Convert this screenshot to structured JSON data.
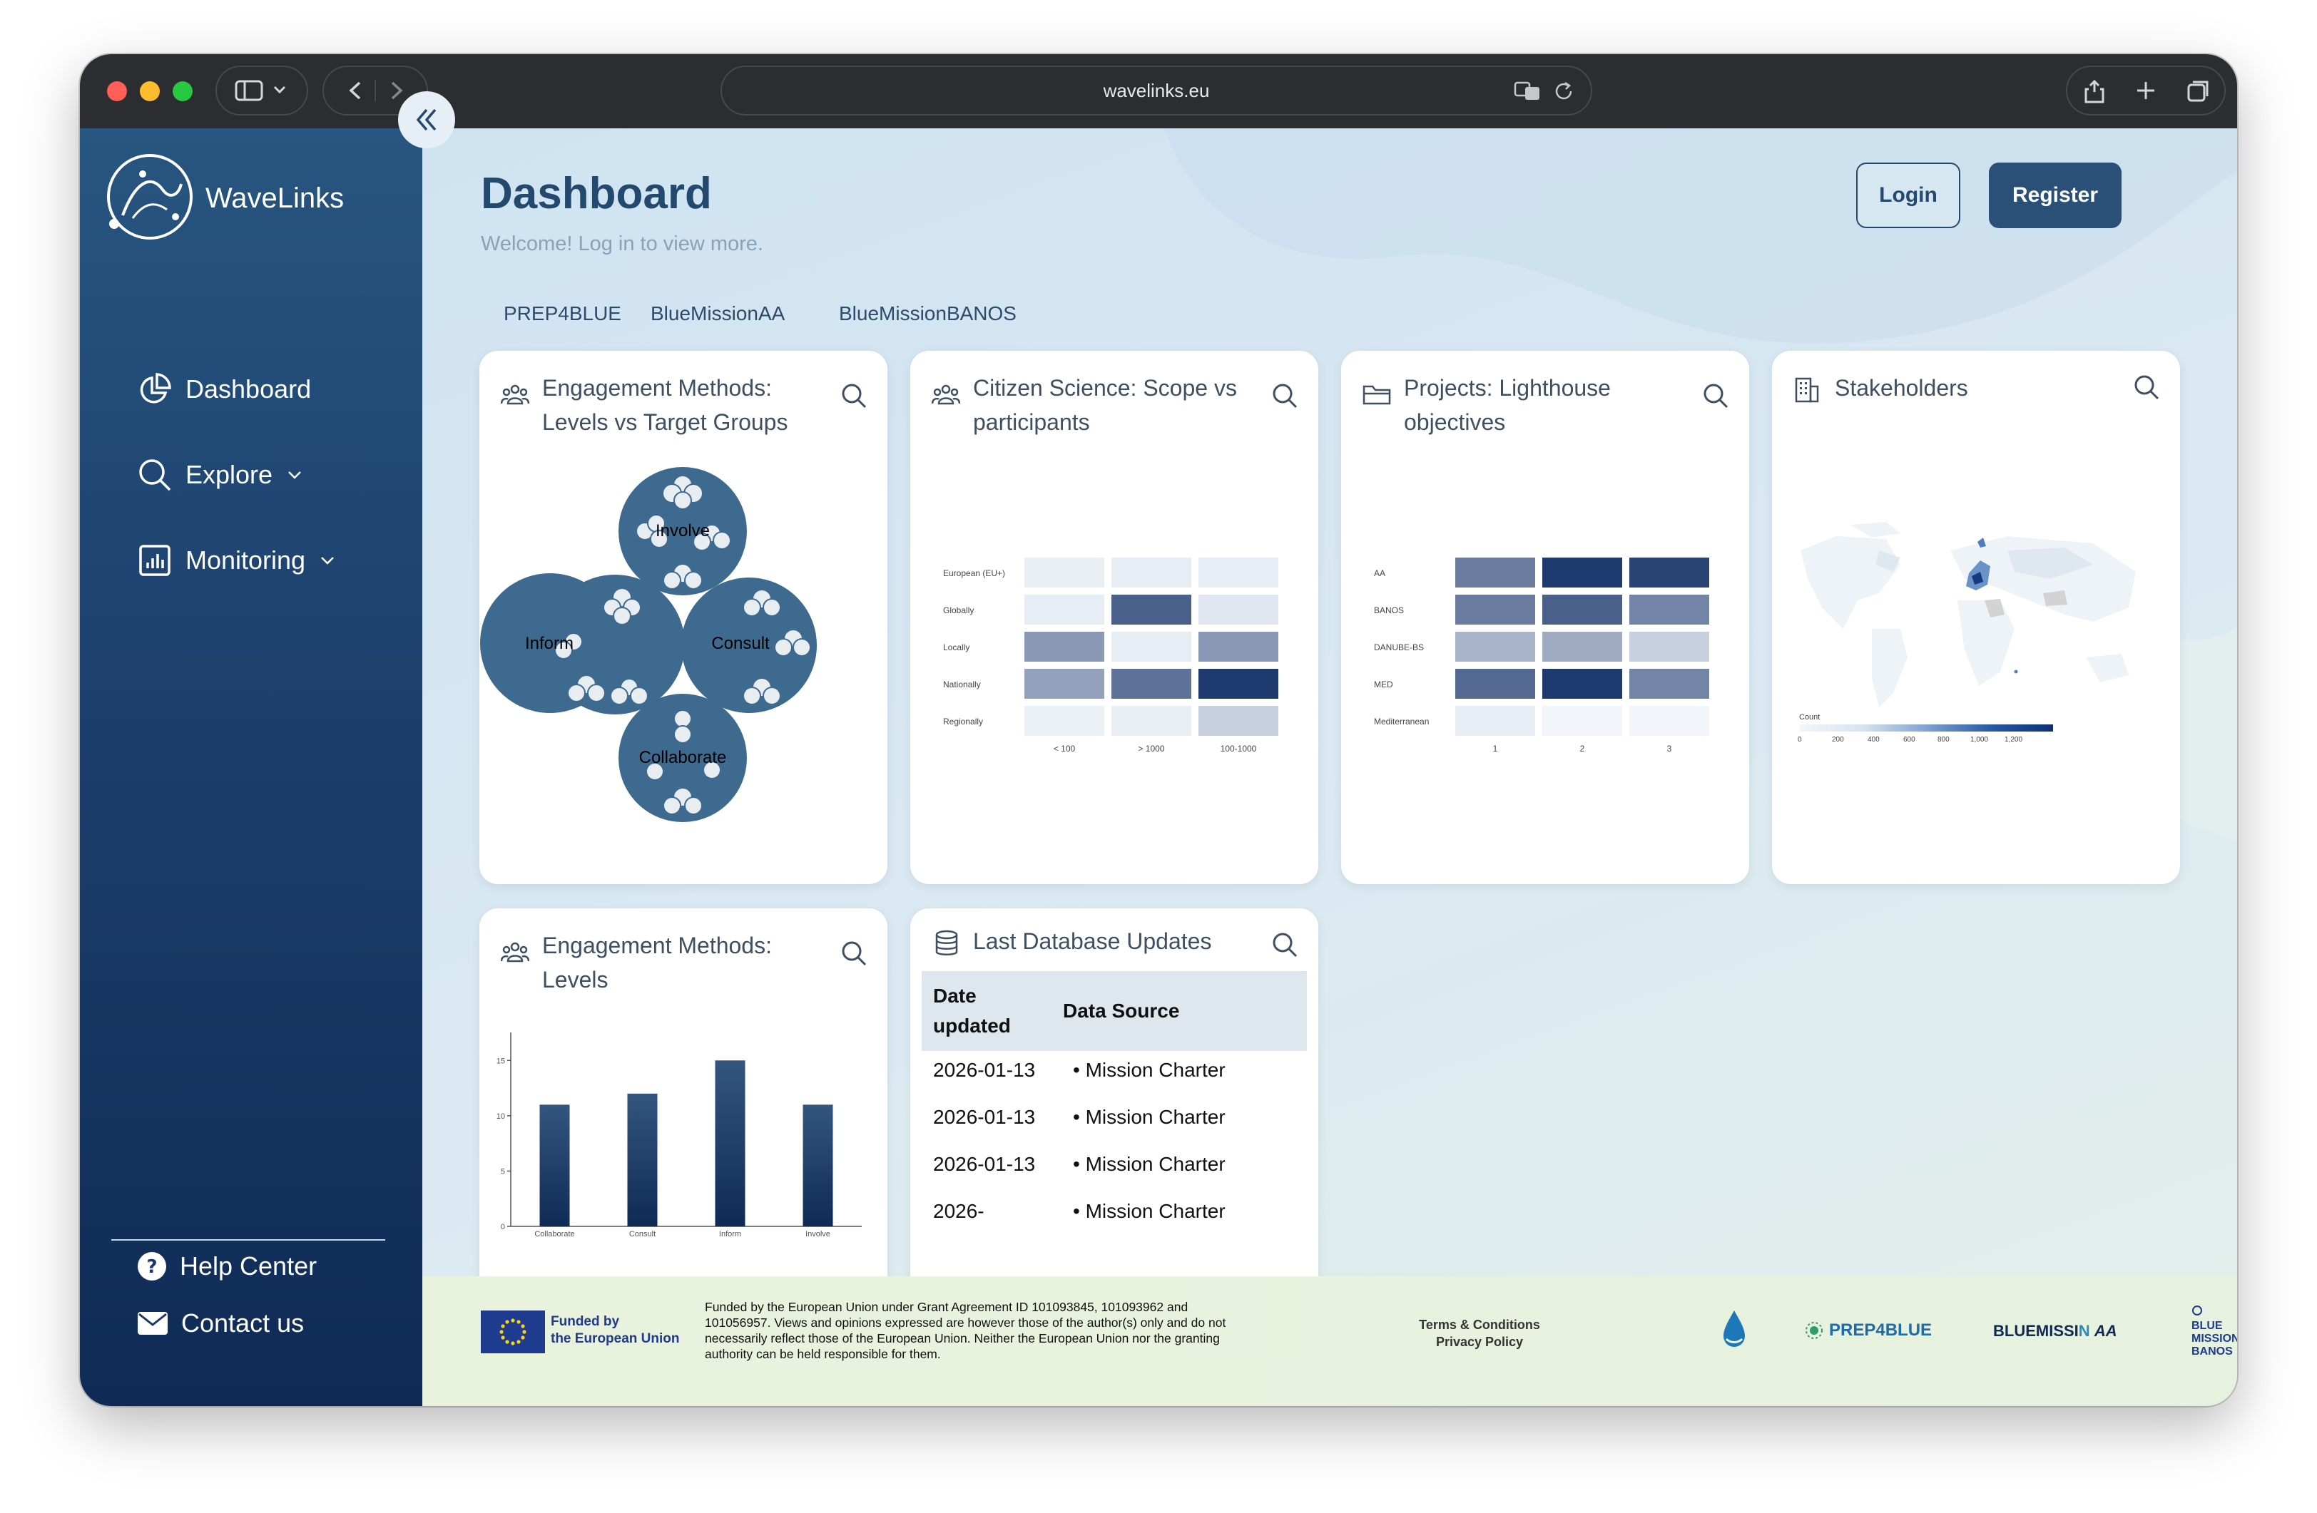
{
  "browser": {
    "url": "wavelinks.eu"
  },
  "sidebar": {
    "brand": "WaveLinks",
    "items": [
      {
        "label": "Dashboard"
      },
      {
        "label": "Explore"
      },
      {
        "label": "Monitoring"
      }
    ],
    "bottom": [
      {
        "label": "Help Center"
      },
      {
        "label": "Contact us"
      }
    ]
  },
  "header": {
    "title": "Dashboard",
    "subtitle": "Welcome! Log in to view more.",
    "login_label": "Login",
    "register_label": "Register"
  },
  "tabs": [
    "PREP4BLUE",
    "BlueMissionAA",
    "BlueMissionBANOS"
  ],
  "cards": {
    "engagement_groups": {
      "title_line1": "Engagement Methods:",
      "title_line2": "Levels vs Target Groups",
      "bubbles": [
        "Involve",
        "Inform",
        "Consult",
        "Collaborate"
      ]
    },
    "citizen_science": {
      "title_line1": "Citizen Science: Scope vs",
      "title_line2": "participants"
    },
    "projects": {
      "title_line1": "Projects: Lighthouse",
      "title_line2": "objectives"
    },
    "stakeholders": {
      "title": "Stakeholders",
      "legend_title": "Count",
      "legend_ticks": [
        "0",
        "200",
        "400",
        "600",
        "800",
        "1,000",
        "1,200"
      ]
    },
    "engagement_levels": {
      "title_line1": "Engagement Methods:",
      "title_line2": "Levels"
    },
    "updates": {
      "title": "Last Database Updates",
      "col_date": "Date updated",
      "col_source": "Data Source",
      "rows": [
        {
          "date": "2026-01-13",
          "source": "Mission Charter"
        },
        {
          "date": "2026-01-13",
          "source": "Mission Charter"
        },
        {
          "date": "2026-01-13",
          "source": "Mission Charter"
        },
        {
          "date": "2026-",
          "source": "Mission Charter"
        }
      ]
    }
  },
  "chart_data": [
    {
      "type": "heatmap",
      "chart": "citizen_science",
      "rows": [
        "European (EU+)",
        "Globally",
        "Locally",
        "Nationally",
        "Regionally"
      ],
      "columns": [
        "< 100",
        "> 1000",
        "100-1000"
      ],
      "values": [
        [
          0.04,
          0.05,
          0.05
        ],
        [
          0.05,
          0.8,
          0.08
        ],
        [
          0.5,
          0.05,
          0.5
        ],
        [
          0.45,
          0.7,
          1.0
        ],
        [
          0.03,
          0.04,
          0.2
        ]
      ],
      "color_high": "#1f3a6e",
      "color_low": "#f2f6fb"
    },
    {
      "type": "heatmap",
      "chart": "projects",
      "rows": [
        "AA",
        "BANOS",
        "DANUBE-BS",
        "MED",
        "Mediterranean"
      ],
      "columns": [
        "1",
        "2",
        "3"
      ],
      "values": [
        [
          0.65,
          1.0,
          0.95
        ],
        [
          0.65,
          0.8,
          0.6
        ],
        [
          0.35,
          0.4,
          0.2
        ],
        [
          0.75,
          1.0,
          0.6
        ],
        [
          0.05,
          0,
          0
        ]
      ],
      "color_high": "#1f3a6e",
      "color_low": "#f2f6fb"
    },
    {
      "type": "bar",
      "chart": "engagement_levels",
      "categories": [
        "Collaborate",
        "Consult",
        "Inform",
        "Involve"
      ],
      "values": [
        11,
        12,
        15,
        11
      ],
      "yticks": [
        0,
        5,
        10,
        15
      ],
      "ylim": [
        0,
        16.5
      ]
    }
  ],
  "footer": {
    "eu_line1": "Funded by",
    "eu_line2": "the European Union",
    "disclaimer_lines": [
      "Funded by the European Union under Grant Agreement ID 101093845, 101093962 and",
      "101056957. Views and opinions expressed are however those of the author(s) only and do not",
      "necessarily reflect those of the European Union. Neither the European Union nor the granting",
      "authority can be held responsible for them."
    ],
    "terms": "Terms & Conditions",
    "privacy": "Privacy Policy",
    "partner_prep": "PREP4BLUE",
    "partner_aa_a": "BLUEMISSI",
    "partner_aa_b": "N",
    "partner_aa_c": "AA",
    "partner_banos_1": "BLUE",
    "partner_banos_2": "MISSION",
    "partner_banos_3": "BANOS"
  }
}
